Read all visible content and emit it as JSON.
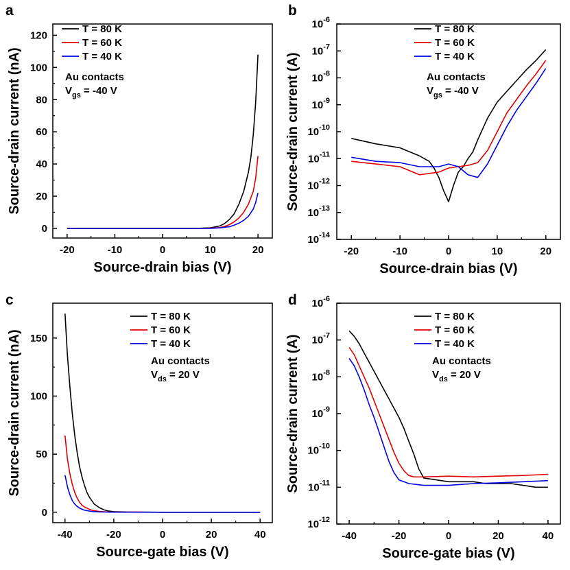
{
  "figure": {
    "legend": [
      {
        "label": "T = 80 K",
        "color": "#000000"
      },
      {
        "label": "T = 60 K",
        "color": "#e00000"
      },
      {
        "label": "T = 40 K",
        "color": "#0000e6"
      }
    ]
  },
  "chart_data": [
    {
      "panel": "a",
      "type": "line",
      "title": "",
      "xlabel": "Source-drain bias (V)",
      "ylabel": "Source-drain current (nA)",
      "xscale": "linear",
      "yscale": "linear",
      "xlim": [
        -23,
        23
      ],
      "ylim": [
        -6,
        127
      ],
      "xticks": [
        -20,
        -10,
        0,
        10,
        20
      ],
      "xtick_labels": [
        "-20",
        "-10",
        "0",
        "10",
        "20"
      ],
      "yticks": [
        0,
        20,
        40,
        60,
        80,
        100,
        120
      ],
      "ytick_labels": [
        "0",
        "20",
        "40",
        "60",
        "80",
        "100",
        "120"
      ],
      "annotation": {
        "line1": "Au contacts",
        "var": "V",
        "sub": "gs",
        "rest": " = -40 V"
      },
      "legend_position": "top-left",
      "series": [
        {
          "name": "T = 80 K",
          "color": "#000000",
          "x": [
            -20,
            -10,
            0,
            5,
            8,
            10,
            12,
            13,
            14,
            15,
            16,
            17,
            18,
            18.5,
            19,
            19.5,
            20
          ],
          "y": [
            0,
            0,
            0,
            0,
            0.1,
            0.3,
            1.5,
            3,
            5.5,
            9,
            15,
            23,
            35,
            44,
            58,
            78,
            108
          ]
        },
        {
          "name": "T = 60 K",
          "color": "#e00000",
          "x": [
            -20,
            -10,
            0,
            8,
            10,
            12,
            13,
            14,
            15,
            16,
            17,
            18,
            19,
            19.5,
            20
          ],
          "y": [
            0,
            0,
            0,
            0,
            0.1,
            0.5,
            1.2,
            2.3,
            4,
            6.5,
            10,
            15,
            23,
            31,
            45
          ]
        },
        {
          "name": "T = 40 K",
          "color": "#0000e6",
          "x": [
            -20,
            -10,
            0,
            10,
            12,
            14,
            15,
            16,
            17,
            18,
            19,
            19.5,
            20
          ],
          "y": [
            0,
            0,
            0,
            0,
            0.3,
            1,
            2,
            3.2,
            5,
            7.5,
            12,
            16,
            22
          ]
        }
      ]
    },
    {
      "panel": "b",
      "type": "line",
      "title": "",
      "xlabel": "Source-drain bias (V)",
      "ylabel": "Source-drain current (A)",
      "xscale": "linear",
      "yscale": "log",
      "xlim": [
        -23,
        23
      ],
      "ylim_exp": [
        -14,
        -6
      ],
      "xticks": [
        -20,
        -10,
        0,
        10,
        20
      ],
      "xtick_labels": [
        "-20",
        "-10",
        "0",
        "10",
        "20"
      ],
      "yticks_exp": [
        -14,
        -13,
        -12,
        -11,
        -10,
        -9,
        -8,
        -7,
        -6
      ],
      "ytick_base": "10",
      "ytick_exponents": [
        "-14",
        "-13",
        "-12",
        "-11",
        "-10",
        "-9",
        "-8",
        "-7",
        "-6"
      ],
      "annotation": {
        "line1": "Au contacts",
        "var": "V",
        "sub": "gs",
        "rest": " = -40 V"
      },
      "legend_position": "top-right",
      "series": [
        {
          "name": "T = 80 K",
          "color": "#000000",
          "x": [
            -20,
            -15,
            -10,
            -6,
            -4,
            -3,
            -2,
            -1,
            0,
            1,
            2,
            3,
            4,
            5,
            6,
            8,
            10,
            12,
            14,
            16,
            18,
            20
          ],
          "y_log10": [
            -10.25,
            -10.45,
            -10.6,
            -10.9,
            -11.1,
            -11.35,
            -11.7,
            -12.2,
            -12.6,
            -12.0,
            -11.5,
            -11.3,
            -11.0,
            -10.75,
            -10.3,
            -9.5,
            -8.9,
            -8.5,
            -8.1,
            -7.7,
            -7.35,
            -6.95
          ]
        },
        {
          "name": "T = 60 K",
          "color": "#e00000",
          "x": [
            -20,
            -15,
            -10,
            -6,
            -2,
            0,
            2,
            4,
            6,
            8,
            10,
            12,
            14,
            16,
            18,
            20
          ],
          "y_log10": [
            -11.1,
            -11.2,
            -11.3,
            -11.6,
            -11.5,
            -11.35,
            -11.3,
            -11.25,
            -11.15,
            -10.7,
            -10.0,
            -9.3,
            -8.8,
            -8.3,
            -7.85,
            -7.35
          ]
        },
        {
          "name": "T = 40 K",
          "color": "#0000e6",
          "x": [
            -20,
            -15,
            -10,
            -6,
            -2,
            0,
            2,
            4,
            6,
            8,
            10,
            12,
            14,
            16,
            18,
            20
          ],
          "y_log10": [
            -10.95,
            -11.1,
            -11.15,
            -11.3,
            -11.3,
            -11.2,
            -11.3,
            -11.6,
            -11.7,
            -11.2,
            -10.5,
            -9.8,
            -9.2,
            -8.7,
            -8.2,
            -7.65
          ]
        }
      ]
    },
    {
      "panel": "c",
      "type": "line",
      "title": "",
      "xlabel": "Source-gate bias (V)",
      "ylabel": "Source-drain current (nA)",
      "xscale": "linear",
      "yscale": "linear",
      "xlim": [
        -45,
        45
      ],
      "ylim": [
        -9,
        180
      ],
      "xticks": [
        -40,
        -20,
        0,
        20,
        40
      ],
      "xtick_labels": [
        "-40",
        "-20",
        "0",
        "20",
        "40"
      ],
      "yticks": [
        0,
        50,
        100,
        150
      ],
      "ytick_labels": [
        "0",
        "50",
        "100",
        "150"
      ],
      "annotation": {
        "line1": "Au contacts",
        "var": "V",
        "sub": "ds",
        "rest": " = 20 V"
      },
      "legend_position": "top-right",
      "series": [
        {
          "name": "T = 80 K",
          "color": "#000000",
          "x": [
            -40,
            -39,
            -38,
            -37,
            -36,
            -35,
            -34,
            -33,
            -32,
            -31,
            -30,
            -28,
            -26,
            -24,
            -22,
            -20,
            -15,
            0,
            20,
            40
          ],
          "y": [
            171,
            135,
            108,
            85,
            66,
            51,
            39,
            30,
            23,
            17,
            13,
            7,
            4,
            2,
            1,
            0.5,
            0.2,
            0,
            0,
            0
          ]
        },
        {
          "name": "T = 60 K",
          "color": "#e00000",
          "x": [
            -40,
            -39,
            -38,
            -37,
            -36,
            -35,
            -34,
            -33,
            -32,
            -30,
            -28,
            -26,
            -24,
            -22,
            -20,
            0,
            20,
            40
          ],
          "y": [
            66,
            46,
            33,
            24,
            17,
            12,
            8.5,
            6,
            4.5,
            2.5,
            1.3,
            0.7,
            0.4,
            0.2,
            0.1,
            0,
            0,
            0
          ]
        },
        {
          "name": "T = 40 K",
          "color": "#0000e6",
          "x": [
            -40,
            -39,
            -38,
            -37,
            -36,
            -35,
            -34,
            -33,
            -32,
            -30,
            -28,
            -26,
            -24,
            -22,
            -20,
            0,
            20,
            40
          ],
          "y": [
            32,
            22,
            15,
            10,
            7,
            5,
            3.5,
            2.5,
            1.8,
            1,
            0.5,
            0.3,
            0.15,
            0.1,
            0.05,
            0,
            0,
            0
          ]
        }
      ]
    },
    {
      "panel": "d",
      "type": "line",
      "title": "",
      "xlabel": "Source-gate bias (V)",
      "ylabel": "Source-drain current (A)",
      "xscale": "linear",
      "yscale": "log",
      "xlim": [
        -45,
        45
      ],
      "ylim_exp": [
        -12,
        -6
      ],
      "xticks": [
        -40,
        -20,
        0,
        20,
        40
      ],
      "xtick_labels": [
        "-40",
        "-20",
        "0",
        "20",
        "40"
      ],
      "yticks_exp": [
        -12,
        -11,
        -10,
        -9,
        -8,
        -7,
        -6
      ],
      "ytick_base": "10",
      "ytick_exponents": [
        "-12",
        "-11",
        "-10",
        "-9",
        "-8",
        "-7",
        "-6"
      ],
      "annotation": {
        "line1": "Au contacts",
        "var": "V",
        "sub": "ds",
        "rest": " = 20 V"
      },
      "legend_position": "top-right",
      "series": [
        {
          "name": "T = 80 K",
          "color": "#000000",
          "x": [
            -40,
            -38,
            -36,
            -34,
            -32,
            -30,
            -28,
            -26,
            -24,
            -22,
            -20,
            -18,
            -16,
            -14,
            -12,
            -10,
            -5,
            0,
            5,
            10,
            15,
            20,
            25,
            30,
            35,
            40
          ],
          "y_log10": [
            -6.75,
            -6.9,
            -7.1,
            -7.35,
            -7.6,
            -7.85,
            -8.1,
            -8.35,
            -8.6,
            -8.85,
            -9.1,
            -9.4,
            -9.75,
            -10.1,
            -10.5,
            -10.75,
            -10.8,
            -10.85,
            -10.85,
            -10.85,
            -10.9,
            -10.9,
            -10.9,
            -10.95,
            -11.0,
            -11.0
          ]
        },
        {
          "name": "T = 60 K",
          "color": "#e00000",
          "x": [
            -40,
            -38,
            -36,
            -34,
            -32,
            -30,
            -28,
            -26,
            -24,
            -22,
            -20,
            -18,
            -16,
            -14,
            -10,
            0,
            10,
            20,
            30,
            40
          ],
          "y_log10": [
            -7.2,
            -7.4,
            -7.7,
            -8.0,
            -8.3,
            -8.65,
            -9.0,
            -9.35,
            -9.7,
            -10.05,
            -10.35,
            -10.55,
            -10.68,
            -10.72,
            -10.72,
            -10.7,
            -10.72,
            -10.7,
            -10.68,
            -10.65
          ]
        },
        {
          "name": "T = 40 K",
          "color": "#0000e6",
          "x": [
            -40,
            -38,
            -36,
            -34,
            -32,
            -30,
            -28,
            -26,
            -24,
            -22,
            -20,
            -18,
            -16,
            -10,
            0,
            10,
            20,
            30,
            40
          ],
          "y_log10": [
            -7.5,
            -7.7,
            -8.0,
            -8.35,
            -8.75,
            -9.1,
            -9.5,
            -9.9,
            -10.3,
            -10.6,
            -10.8,
            -10.85,
            -10.9,
            -10.95,
            -10.95,
            -10.9,
            -10.88,
            -10.85,
            -10.82
          ]
        }
      ]
    }
  ]
}
